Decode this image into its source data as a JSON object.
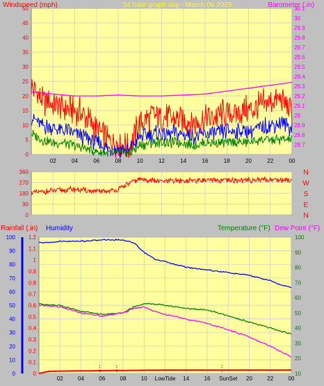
{
  "chart_data": [
    {
      "type": "line",
      "header": {
        "left_label": "Windspeed (mph)",
        "title": "24 hour graph day - March 06 2025",
        "right_label": "Barometer (.in)"
      },
      "x_ticks": [
        "02",
        "04",
        "06",
        "08",
        "10",
        "12",
        "14",
        "16",
        "18",
        "20",
        "22",
        "00"
      ],
      "x_range_hours": [
        0,
        24
      ],
      "y_left": {
        "min": 0,
        "max": 50,
        "ticks": [
          "0",
          "5",
          "10",
          "15",
          "20",
          "25",
          "30",
          "35",
          "40",
          "45",
          "50"
        ]
      },
      "y_right": {
        "min": 28.6,
        "max": 30.1,
        "ticks": [
          "28.7",
          "28.8",
          "28.9",
          "29",
          "29.1",
          "29.2",
          "29.3",
          "29.4",
          "29.5",
          "29.6",
          "29.7",
          "29.8",
          "29.9",
          "30",
          "30.1"
        ]
      },
      "grid": true,
      "series": [
        {
          "role": "wind-gust",
          "color": "#ff0000",
          "x": [
            0,
            1,
            2,
            3,
            4,
            5,
            6,
            7,
            8,
            9,
            10,
            11,
            12,
            13,
            14,
            15,
            16,
            17,
            18,
            19,
            20,
            21,
            22,
            23,
            24
          ],
          "values": [
            23,
            19,
            17,
            16,
            15,
            13,
            9,
            5,
            4,
            2,
            11,
            13,
            13,
            12,
            12,
            11,
            12,
            13,
            14,
            14,
            15,
            16,
            18,
            19,
            15
          ]
        },
        {
          "role": "wind-speed",
          "color": "#0000ff",
          "x": [
            0,
            1,
            2,
            3,
            4,
            5,
            6,
            7,
            8,
            9,
            10,
            11,
            12,
            13,
            14,
            15,
            16,
            17,
            18,
            19,
            20,
            21,
            22,
            23,
            24
          ],
          "values": [
            13,
            10,
            9,
            8,
            7,
            6,
            4,
            2,
            2,
            1,
            6,
            7,
            7,
            7,
            7,
            6,
            7,
            7,
            8,
            8,
            8,
            9,
            10,
            11,
            9
          ]
        },
        {
          "role": "wind-low",
          "color": "#008000",
          "x": [
            0,
            1,
            2,
            3,
            4,
            5,
            6,
            7,
            8,
            9,
            10,
            11,
            12,
            13,
            14,
            15,
            16,
            17,
            18,
            19,
            20,
            21,
            22,
            23,
            24
          ],
          "values": [
            7,
            5,
            4,
            4,
            3,
            2,
            1,
            0.5,
            0.5,
            0.5,
            3,
            4,
            4,
            4,
            4,
            3,
            4,
            4,
            4,
            4,
            4,
            5,
            5,
            5,
            5
          ]
        },
        {
          "role": "barometer",
          "color": "#ff00ff",
          "x": [
            0,
            2,
            4,
            6,
            8,
            10,
            12,
            14,
            16,
            18,
            20,
            22,
            24
          ],
          "values": [
            29.24,
            29.22,
            29.2,
            29.2,
            29.21,
            29.2,
            29.2,
            29.21,
            29.22,
            29.25,
            29.28,
            29.31,
            29.34
          ]
        }
      ]
    },
    {
      "type": "line",
      "y_ticks": [
        "0",
        "90",
        "180",
        "270",
        "360"
      ],
      "y_range": [
        0,
        360
      ],
      "compass": [
        "N",
        "W",
        "S",
        "E",
        "N"
      ],
      "series": [
        {
          "role": "wind-direction",
          "color": "#ff0000",
          "x": [
            0,
            2,
            4,
            6,
            7,
            8,
            9,
            10,
            12,
            14,
            16,
            18,
            20,
            22,
            24
          ],
          "values": [
            185,
            200,
            215,
            195,
            200,
            210,
            265,
            300,
            280,
            285,
            290,
            285,
            290,
            295,
            290
          ]
        }
      ]
    },
    {
      "type": "line",
      "header": {
        "rain_label": "Rainfall (.in)",
        "humidity_label": "Humidity",
        "temp_label": "Temperature (°F)",
        "dew_label": "Dew Point (°F)"
      },
      "x_ticks": [
        "02",
        "04",
        "06",
        "08",
        "10",
        "LowTide",
        "14",
        "16",
        "SunSet",
        "20",
        "22",
        "00"
      ],
      "y_humidity": {
        "min": 0,
        "max": 100,
        "ticks": [
          "0",
          "10",
          "20",
          "30",
          "40",
          "50",
          "60",
          "70",
          "80",
          "90",
          "100"
        ]
      },
      "y_rain": {
        "min": 0,
        "max": 1.2,
        "ticks": [
          "0",
          "0.1",
          "0.2",
          "0.3",
          "0.4",
          "0.5",
          "0.6",
          "0.7",
          "0.8",
          "0.9",
          "1",
          "1.1",
          "1.2"
        ]
      },
      "y_temp": {
        "min": 10,
        "max": 100,
        "ticks": [
          "10",
          "20",
          "30",
          "40",
          "50",
          "60",
          "70",
          "80",
          "90",
          "100"
        ]
      },
      "grid": true,
      "series": [
        {
          "name": "Humidity",
          "color": "#0000ff",
          "x": [
            0,
            1,
            2,
            4,
            6,
            8,
            9,
            10,
            11,
            12,
            14,
            16,
            18,
            20,
            22,
            23,
            24
          ],
          "values": [
            96,
            96,
            97,
            97,
            98,
            98,
            96,
            89,
            84,
            82,
            78,
            76,
            74,
            72,
            68,
            65,
            63
          ]
        },
        {
          "name": "Temperature (°F)",
          "color": "#008000",
          "x": [
            0,
            2,
            4,
            6,
            8,
            9,
            10,
            11,
            12,
            14,
            16,
            18,
            20,
            22,
            24
          ],
          "values": [
            56,
            55,
            51,
            49,
            50,
            54,
            56,
            56,
            55,
            53,
            52,
            48,
            44,
            40,
            36
          ]
        },
        {
          "name": "Dew Point (°F)",
          "color": "#ff00ff",
          "x": [
            0,
            2,
            4,
            6,
            8,
            9,
            10,
            11,
            12,
            14,
            16,
            18,
            20,
            22,
            24
          ],
          "values": [
            55,
            54,
            50,
            48,
            50,
            53,
            54,
            51,
            49,
            46,
            43,
            39,
            34,
            28,
            21
          ]
        },
        {
          "name": "Rainfall (.in)",
          "color": "#ff0000",
          "x": [
            0,
            1,
            12,
            23.8,
            24
          ],
          "values": [
            0,
            0.02,
            0.03,
            0.03,
            0.03
          ]
        }
      ]
    }
  ]
}
